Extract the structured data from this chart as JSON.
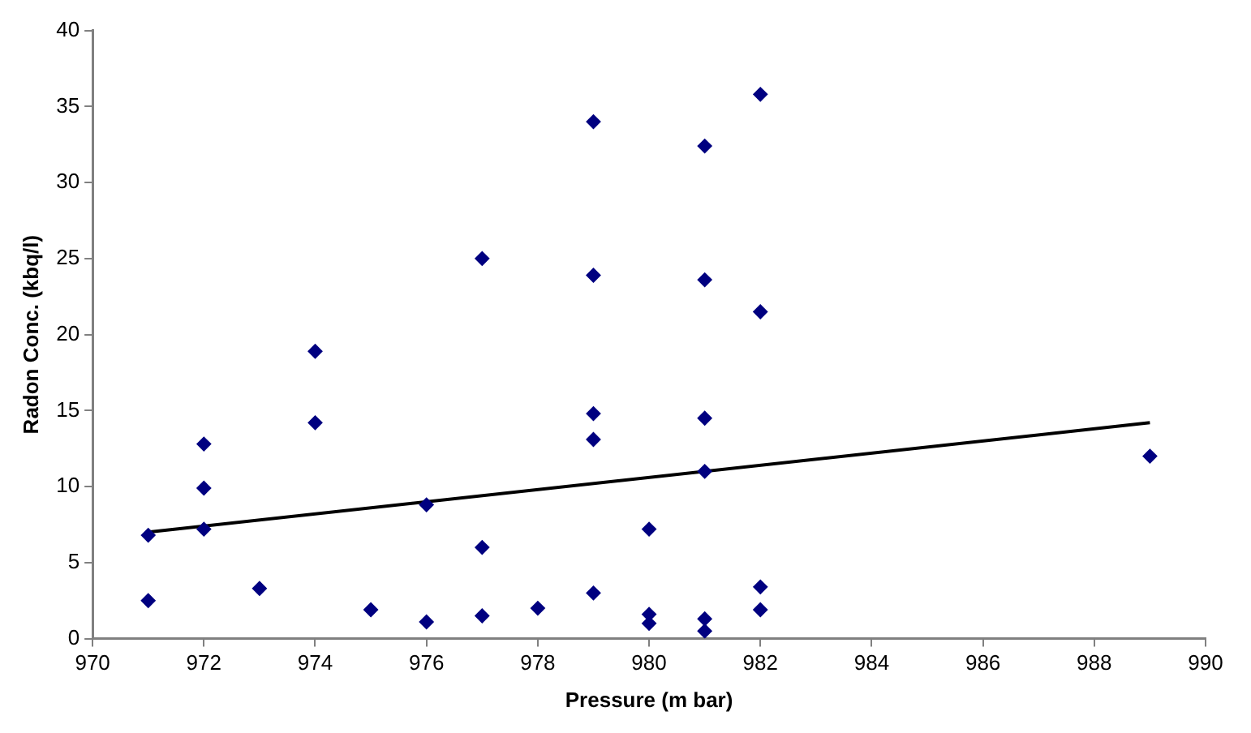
{
  "chart_data": {
    "type": "scatter",
    "xlabel": "Pressure (m bar)",
    "ylabel": "Radon Conc. (kbq/l)",
    "xlim": [
      970,
      990
    ],
    "xticks": [
      970,
      972,
      974,
      976,
      978,
      980,
      982,
      984,
      986,
      988,
      990
    ],
    "ylim": [
      0,
      40
    ],
    "yticks": [
      0,
      5,
      10,
      15,
      20,
      25,
      30,
      35,
      40
    ],
    "grid": false,
    "legend": false,
    "marker": "diamond",
    "series": [
      {
        "color": "#000080",
        "x": [
          971,
          971,
          972,
          972,
          972,
          973,
          974,
          974,
          975,
          976,
          976,
          977,
          977,
          977,
          978,
          979,
          979,
          979,
          979,
          979,
          980,
          980,
          980,
          981,
          981,
          981,
          981,
          981,
          981,
          982,
          982,
          982,
          982,
          989
        ],
        "values": [
          6.8,
          2.5,
          12.8,
          9.9,
          7.2,
          3.3,
          18.9,
          14.2,
          1.9,
          8.8,
          1.1,
          25.0,
          6.0,
          1.5,
          2.0,
          34.0,
          23.9,
          14.8,
          13.1,
          3.0,
          7.2,
          1.6,
          1.0,
          32.4,
          23.6,
          14.5,
          11.0,
          1.3,
          0.5,
          35.8,
          21.5,
          3.4,
          1.9,
          12.0
        ]
      },
      {
        "type": "line",
        "color": "#000000",
        "marker": "none",
        "x": [
          971,
          989
        ],
        "values": [
          7.0,
          14.2
        ]
      }
    ]
  }
}
